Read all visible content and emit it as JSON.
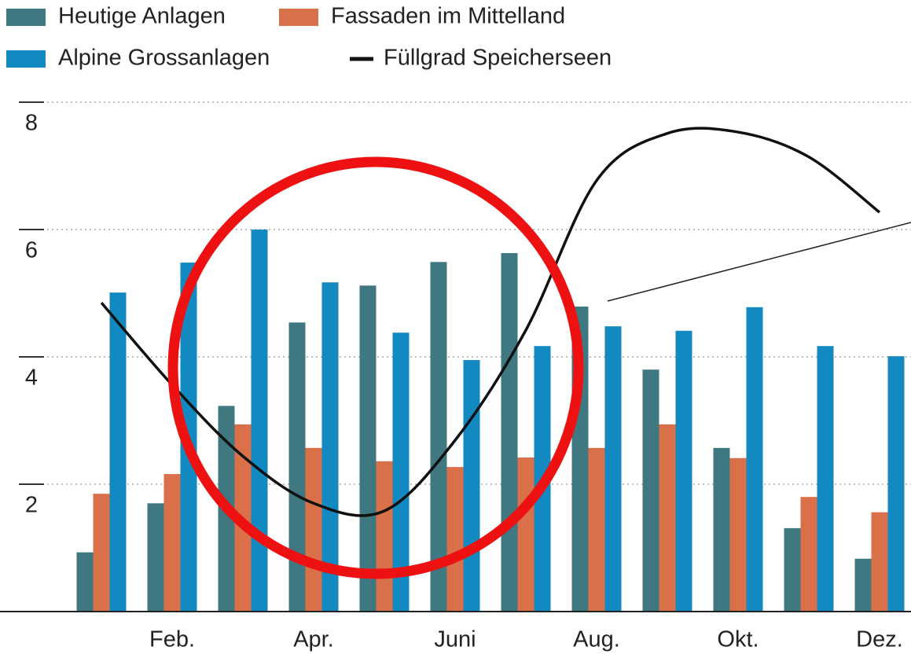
{
  "chart_data": {
    "type": "bar",
    "categories": [
      null,
      "Feb.",
      null,
      "Apr.",
      null,
      "Juni",
      null,
      "Aug.",
      null,
      "Okt.",
      null,
      "Dez."
    ],
    "series": [
      {
        "name": "Heutige Anlagen",
        "color": "#3f7880",
        "values": [
          0.93,
          1.7,
          3.23,
          4.54,
          5.12,
          5.49,
          5.63,
          4.79,
          3.8,
          2.57,
          1.31,
          0.83
        ]
      },
      {
        "name": "Fassaden im Mittelland",
        "color": "#d9704a",
        "values": [
          1.85,
          2.16,
          2.94,
          2.57,
          2.36,
          2.27,
          2.42,
          2.57,
          2.94,
          2.41,
          1.8,
          1.56
        ]
      },
      {
        "name": "Alpine Grossanlagen",
        "color": "#1289c0",
        "values": [
          5.01,
          5.48,
          6.0,
          5.17,
          4.38,
          3.95,
          4.17,
          4.48,
          4.41,
          4.78,
          4.17,
          4.01
        ]
      },
      {
        "name": "Füllgrad Speicherseen",
        "color": "#111111",
        "type": "line",
        "values": [
          4.85,
          3.56,
          2.44,
          1.7,
          1.58,
          2.69,
          4.42,
          6.77,
          7.51,
          7.53,
          7.14,
          6.27
        ]
      }
    ],
    "ylim": [
      0,
      8
    ],
    "yticks": [
      2,
      4,
      6,
      8
    ],
    "grid": true
  }
}
